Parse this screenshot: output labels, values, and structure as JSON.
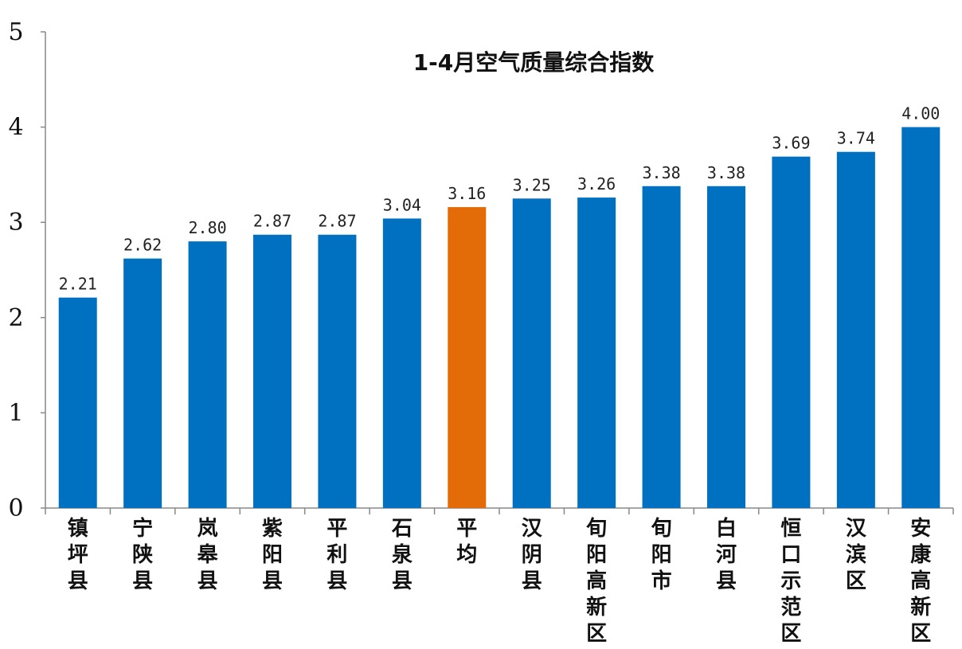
{
  "chart_data": {
    "type": "bar",
    "title": "1-4月空气质量综合指数",
    "xlabel": "",
    "ylabel": "",
    "ylim": [
      0,
      5
    ],
    "yticks": [
      "0",
      "1",
      "2",
      "3",
      "4",
      "5"
    ],
    "grid": false,
    "legend": "none",
    "categories": [
      "镇坪县",
      "宁陕县",
      "岚皋县",
      "紫阳县",
      "平利县",
      "石泉县",
      "平均",
      "汉阴县",
      "旬阳高新区",
      "旬阳市",
      "白河县",
      "恒口示范区",
      "汉滨区",
      "安康高新区"
    ],
    "values": [
      2.21,
      2.62,
      2.8,
      2.87,
      2.87,
      3.04,
      3.16,
      3.25,
      3.26,
      3.38,
      3.38,
      3.69,
      3.74,
      4.0
    ],
    "data_labels": [
      "2.21",
      "2.62",
      "2.80",
      "2.87",
      "2.87",
      "3.04",
      "3.16",
      "3.25",
      "3.26",
      "3.38",
      "3.38",
      "3.69",
      "3.74",
      "4.00"
    ],
    "colors": {
      "bar": "#0070C0",
      "highlight": "#E36C09",
      "axis": "#888888"
    },
    "highlight_category": "平均"
  }
}
